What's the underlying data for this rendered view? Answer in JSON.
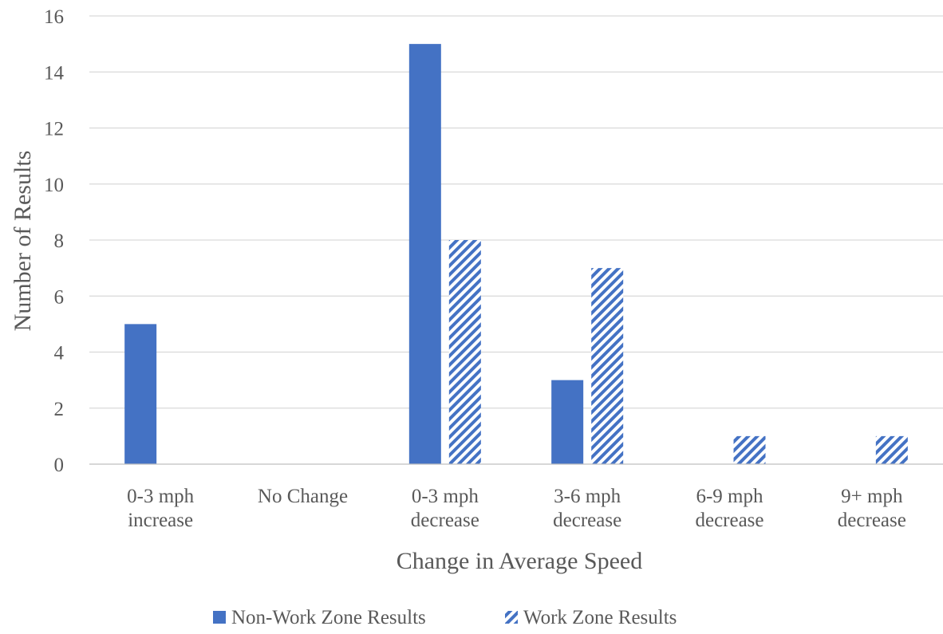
{
  "chart_data": {
    "type": "bar",
    "categories": [
      [
        "0-3 mph",
        "increase"
      ],
      [
        "No Change"
      ],
      [
        "0-3 mph",
        "decrease"
      ],
      [
        "3-6 mph",
        "decrease"
      ],
      [
        "6-9 mph",
        "decrease"
      ],
      [
        "9+ mph",
        "decrease"
      ]
    ],
    "series": [
      {
        "name": "Non-Work Zone Results",
        "values": [
          5,
          0,
          15,
          3,
          0,
          0
        ],
        "color": "#4472c4",
        "fill": "solid"
      },
      {
        "name": "Work Zone Results",
        "values": [
          0,
          0,
          8,
          7,
          1,
          1
        ],
        "color": "#4472c4",
        "fill": "diagonal-stripes"
      }
    ],
    "xlabel": "Change in Average Speed",
    "ylabel": "Number of Results",
    "ylim": [
      0,
      16
    ],
    "yticks": [
      0,
      2,
      4,
      6,
      8,
      10,
      12,
      14,
      16
    ],
    "grid": true,
    "legend_position": "bottom"
  }
}
